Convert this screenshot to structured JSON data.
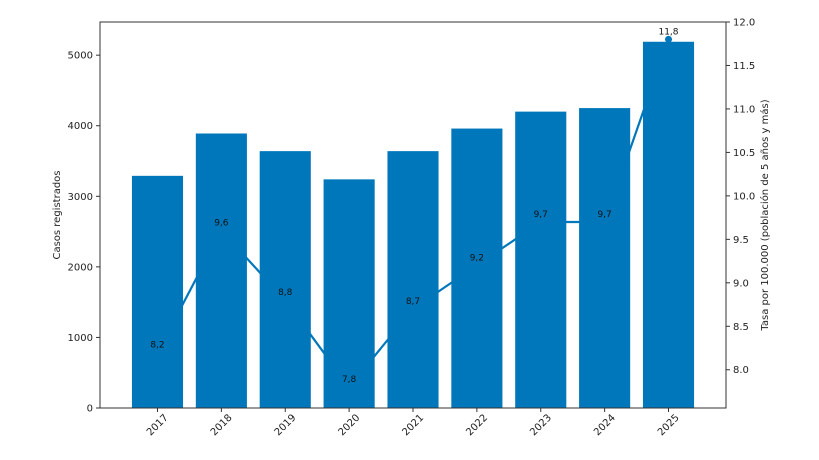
{
  "chart_data": {
    "type": "bar",
    "categories": [
      "2017",
      "2018",
      "2019",
      "2020",
      "2021",
      "2022",
      "2023",
      "2024",
      "2025"
    ],
    "series": [
      {
        "type": "bar",
        "axis": "left",
        "values": [
          3290,
          3890,
          3640,
          3240,
          3640,
          3960,
          4200,
          4250,
          5190
        ]
      },
      {
        "type": "line",
        "axis": "right",
        "values": [
          8.2,
          9.6,
          8.8,
          7.8,
          8.7,
          9.2,
          9.7,
          9.7,
          11.8
        ],
        "labels": [
          "8,2",
          "9,6",
          "8,8",
          "7,8",
          "8,7",
          "9,2",
          "9,7",
          "9,7",
          "11,8"
        ]
      }
    ],
    "title": "",
    "xlabel": "",
    "ylabel": "Casos registrados",
    "y2label": "Tasa por 100.000 (población de 5 años y más)",
    "ylim": [
      0,
      5470
    ],
    "y2lim": [
      7.56,
      12.0
    ],
    "yticks": [
      0,
      1000,
      2000,
      3000,
      4000,
      5000
    ],
    "y2ticks": [
      8.0,
      8.5,
      9.0,
      9.5,
      10.0,
      10.5,
      11.0,
      11.5,
      12.0
    ],
    "y2tick_labels": [
      "8.0",
      "8.5",
      "9.0",
      "9.5",
      "10.0",
      "10.5",
      "11.0",
      "11.5",
      "12.0"
    ],
    "grid": false,
    "legend": "none",
    "colors": {
      "bar": "#0077bb",
      "line": "#0077bb"
    }
  }
}
